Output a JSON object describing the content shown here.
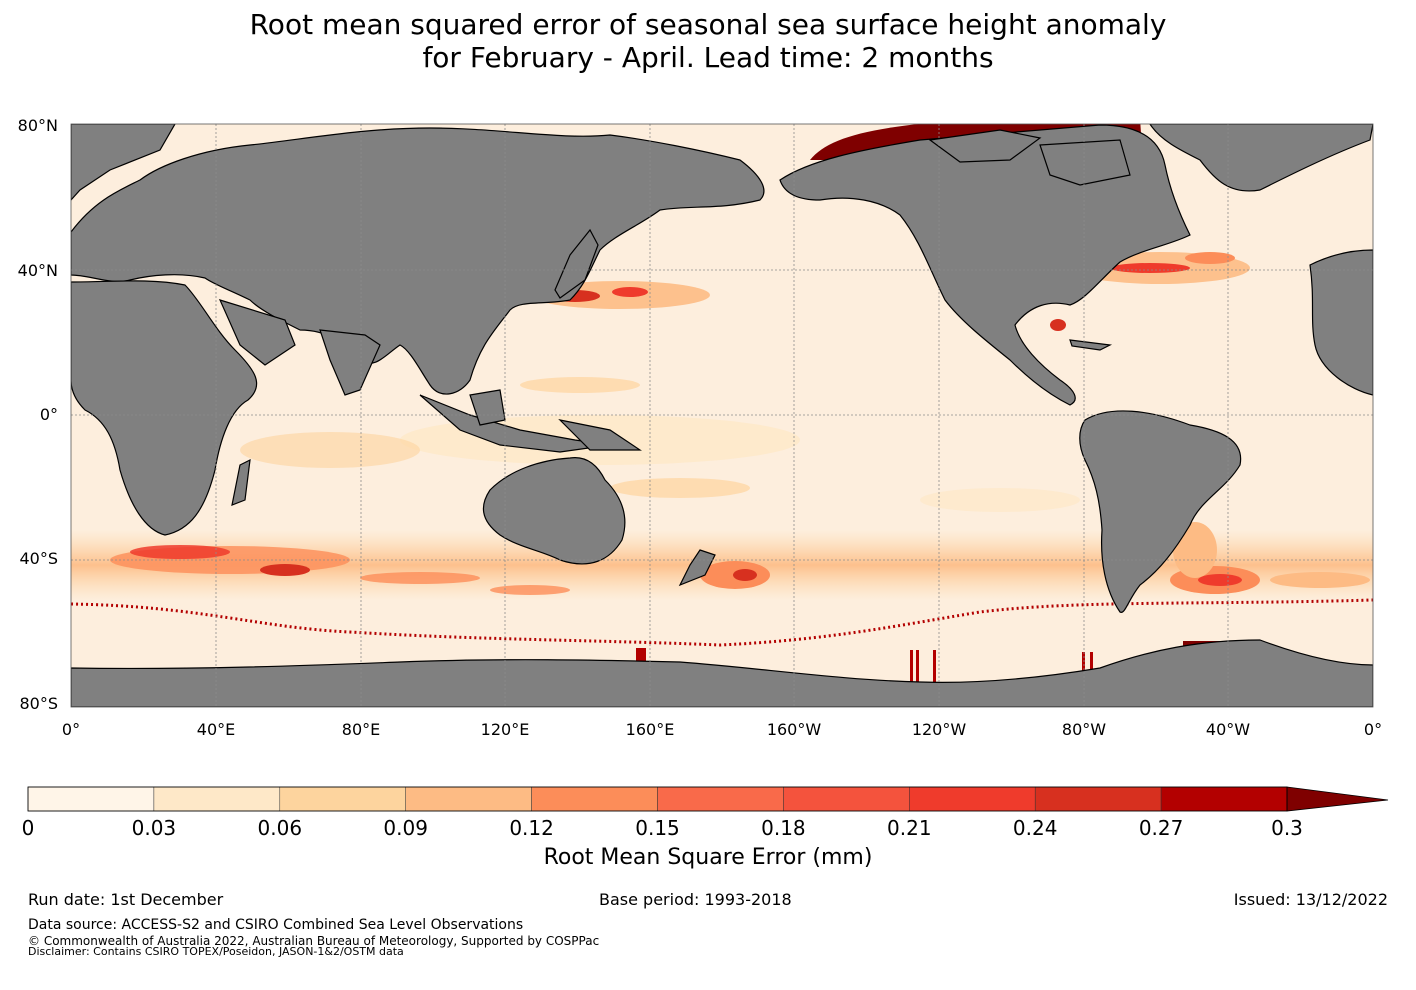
{
  "title": {
    "line1": "Root mean squared error of seasonal sea surface height anomaly",
    "line2": "for February - April. Lead time: 2 months"
  },
  "map": {
    "lat_labels": [
      "80°N",
      "40°N",
      "0°",
      "40°S",
      "80°S"
    ],
    "lon_labels": [
      "0°",
      "40°E",
      "80°E",
      "120°E",
      "160°E",
      "160°W",
      "120°W",
      "80°W",
      "40°W",
      "0°"
    ],
    "colors": {
      "ocean": "#fdeedd",
      "land": "#808080",
      "coast": "#000000",
      "grid": "#8c8c8c",
      "hotspot": "#7f0000"
    }
  },
  "colorbar": {
    "ticks": [
      "0",
      "0.03",
      "0.06",
      "0.09",
      "0.12",
      "0.15",
      "0.18",
      "0.21",
      "0.24",
      "0.27",
      "0.3"
    ],
    "colors": [
      "#fff5e8",
      "#fee8c8",
      "#fdd49e",
      "#fdbb84",
      "#fc8d59",
      "#f96a4a",
      "#f4533d",
      "#ef3b2c",
      "#d7301f",
      "#b30000",
      "#7f0000"
    ],
    "label": "Root Mean Square Error (mm)"
  },
  "footer": {
    "run_date": "Run date: 1st December",
    "base_period": "Base period: 1993-2018",
    "issued": "Issued: 13/12/2022",
    "data_source": "Data source: ACCESS-S2 and CSIRO Combined Sea Level Observations",
    "copyright": "© Commonwealth of Australia 2022, Australian Bureau of Meteorology, Supported by COSPPac",
    "disclaimer": "Disclaimer: Contains CSIRO TOPEX/Poseidon, JASON-1&2/OSTM data"
  }
}
